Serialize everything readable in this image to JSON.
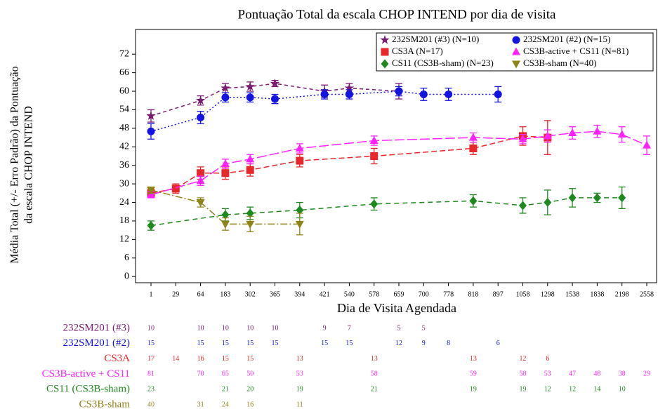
{
  "chart_data": {
    "type": "line",
    "title": "Pontuação Total da escala CHOP INTEND por dia de visita",
    "xlabel": "Dia de Visita Agendada",
    "ylabel": [
      "Média Total (+/- Erro Padrão) da Pontuação",
      "da escala CHOP INTEND"
    ],
    "categories": [
      "1",
      "29",
      "64",
      "183",
      "302",
      "365",
      "394",
      "421",
      "540",
      "578",
      "659",
      "700",
      "778",
      "818",
      "897",
      "1058",
      "1298",
      "1538",
      "1838",
      "2198",
      "2558"
    ],
    "ylim": [
      -2,
      80
    ],
    "yticks": [
      0,
      6,
      12,
      18,
      24,
      30,
      36,
      42,
      48,
      54,
      60,
      66,
      72
    ],
    "legend": "top-right",
    "series": [
      {
        "name": "232SM201 (#3) (N=10)",
        "color": "#7b1a72",
        "marker": "star",
        "dash": "5,4",
        "values": [
          52,
          null,
          57,
          61,
          61.5,
          62.5,
          null,
          60,
          61,
          null,
          60,
          null,
          null,
          null,
          null,
          null,
          null,
          null,
          null,
          null,
          null
        ],
        "errors": [
          2,
          null,
          1.5,
          1.5,
          1.5,
          1,
          null,
          2,
          1.5,
          null,
          2.5,
          null,
          null,
          null,
          null,
          null,
          null,
          null,
          null,
          null,
          null
        ]
      },
      {
        "name": "232SM201 (#2) (N=15)",
        "color": "#1414e0",
        "marker": "circle",
        "dash": "2,3",
        "values": [
          47,
          null,
          51.5,
          58,
          58,
          57.5,
          null,
          59,
          59,
          null,
          60,
          59,
          59,
          null,
          59,
          null,
          null,
          null,
          null,
          null,
          null
        ],
        "errors": [
          2.5,
          null,
          2,
          1.5,
          1.5,
          1.5,
          null,
          1.5,
          1.5,
          null,
          1.5,
          2,
          2,
          null,
          2.5,
          null,
          null,
          null,
          null,
          null,
          null
        ]
      },
      {
        "name": "CS3A (N=17)",
        "color": "#e8272a",
        "marker": "square",
        "dash": "8,4",
        "values": [
          27,
          28.5,
          33.5,
          33.5,
          34.5,
          null,
          37.5,
          null,
          null,
          39,
          null,
          null,
          null,
          41.5,
          null,
          45.5,
          45,
          null,
          null,
          null,
          null
        ],
        "errors": [
          1,
          1.5,
          2,
          2,
          2,
          null,
          2,
          null,
          null,
          2.5,
          null,
          null,
          null,
          2,
          null,
          3,
          5.5,
          null,
          null,
          null,
          null
        ]
      },
      {
        "name": "CS3B-active + CS11 (N=81)",
        "color": "#ff22ff",
        "marker": "triangle-up",
        "dash": "14,4",
        "values": [
          26.5,
          null,
          31,
          36.5,
          38,
          null,
          41.5,
          null,
          null,
          44,
          null,
          null,
          null,
          45,
          null,
          44.5,
          45.5,
          46.5,
          47,
          46,
          42.5
        ],
        "errors": [
          1,
          null,
          1.5,
          1.5,
          1.5,
          null,
          1.5,
          null,
          null,
          1.5,
          null,
          null,
          null,
          1.5,
          null,
          1.5,
          2,
          2,
          2,
          2.5,
          3
        ]
      },
      {
        "name": "CS11 (CS3B-sham) (N=23)",
        "color": "#1e8a1e",
        "marker": "diamond",
        "dash": "7,5",
        "values": [
          16.5,
          null,
          null,
          20,
          20.5,
          null,
          21.5,
          null,
          null,
          23.5,
          null,
          null,
          null,
          24.5,
          null,
          23,
          24,
          25.5,
          25.5,
          25.5,
          null
        ],
        "errors": [
          1.5,
          null,
          null,
          2,
          2,
          null,
          2.5,
          null,
          null,
          2,
          null,
          null,
          null,
          2,
          null,
          2.5,
          4,
          3,
          1.5,
          3.5,
          null
        ]
      },
      {
        "name": "CS3B-sham (N=40)",
        "color": "#8f8417",
        "marker": "triangle-down",
        "dash": "10,3,2,3",
        "values": [
          28,
          null,
          24,
          17,
          17,
          null,
          17,
          null,
          null,
          null,
          null,
          null,
          null,
          null,
          null,
          null,
          null,
          null,
          null,
          null,
          null
        ],
        "errors": [
          1,
          null,
          1.5,
          2,
          2.5,
          null,
          3.5,
          null,
          null,
          null,
          null,
          null,
          null,
          null,
          null,
          null,
          null,
          null,
          null,
          null,
          null
        ]
      }
    ]
  },
  "table": {
    "rows": [
      {
        "label": "232SM201 (#3)",
        "counts": [
          "10",
          null,
          "10",
          "10",
          "10",
          "10",
          null,
          "9",
          "7",
          null,
          "5",
          "5",
          null,
          null,
          null,
          null,
          null,
          null,
          null,
          null,
          null
        ]
      },
      {
        "label": "232SM201 (#2)",
        "counts": [
          "15",
          null,
          "15",
          "15",
          "15",
          "15",
          null,
          "15",
          "15",
          null,
          "12",
          "9",
          "8",
          null,
          "6",
          null,
          null,
          null,
          null,
          null,
          null
        ]
      },
      {
        "label": "CS3A",
        "counts": [
          "17",
          "14",
          "16",
          "15",
          "15",
          null,
          "13",
          null,
          null,
          "13",
          null,
          null,
          null,
          "13",
          null,
          "12",
          "6",
          null,
          null,
          null,
          null
        ]
      },
      {
        "label": "CS3B-active + CS11",
        "counts": [
          "81",
          null,
          "70",
          "65",
          "50",
          null,
          "53",
          null,
          null,
          "58",
          null,
          null,
          null,
          "59",
          null,
          "58",
          "53",
          "47",
          "48",
          "38",
          "29"
        ]
      },
      {
        "label": "CS11 (CS3B-sham)",
        "counts": [
          "23",
          null,
          null,
          "21",
          "20",
          null,
          "19",
          null,
          null,
          "21",
          null,
          null,
          null,
          "19",
          null,
          "19",
          "12",
          "12",
          "14",
          "10",
          null
        ]
      },
      {
        "label": "CS3B-sham",
        "counts": [
          "40",
          null,
          "31",
          "24",
          "16",
          null,
          "11",
          null,
          null,
          null,
          null,
          null,
          null,
          null,
          null,
          null,
          null,
          null,
          null,
          null,
          null
        ]
      }
    ]
  }
}
